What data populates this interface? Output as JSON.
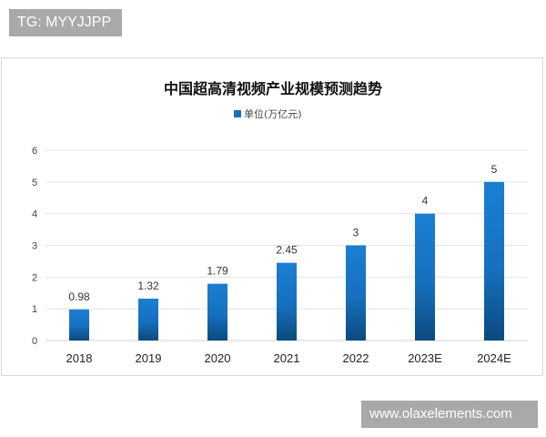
{
  "watermarks": {
    "top": "TG: MYYJJPP",
    "bottom": "www.olaxelements.com"
  },
  "colors": {
    "bar_top": "#1a7fd4",
    "bar_bottom": "#0b4a7e",
    "grid": "#e3e3e3"
  },
  "chart_data": {
    "type": "bar",
    "title": "中国超高清视频产业规模预测趋势",
    "legend": {
      "entries": [
        "单位(万亿元)"
      ],
      "placement": "top"
    },
    "categories": [
      "2018",
      "2019",
      "2020",
      "2021",
      "2022",
      "2023E",
      "2024E"
    ],
    "series": [
      {
        "name": "单位(万亿元)",
        "values": [
          0.98,
          1.32,
          1.79,
          2.45,
          3,
          4,
          5
        ],
        "labels": [
          "0.98",
          "1.32",
          "1.79",
          "2.45",
          "3",
          "4",
          "5"
        ]
      }
    ],
    "ylim": [
      0,
      6
    ],
    "yticks": [
      "0",
      "1",
      "2",
      "3",
      "4",
      "5",
      "6"
    ],
    "grid": true
  }
}
